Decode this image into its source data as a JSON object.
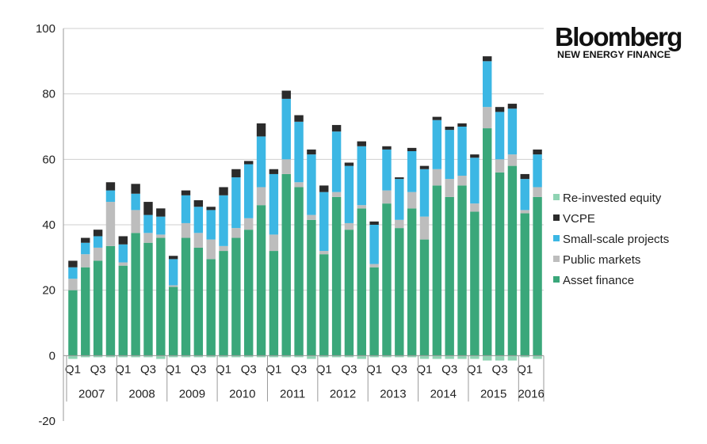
{
  "brand": {
    "name": "Bloomberg",
    "subtitle": "NEW ENERGY FINANCE"
  },
  "chart_data": {
    "type": "bar",
    "stacked": true,
    "title": "",
    "xlabel": "",
    "ylabel": "",
    "ylim": [
      -20,
      100
    ],
    "yticks": [
      -20,
      0,
      20,
      40,
      60,
      80,
      100
    ],
    "grid": true,
    "legend_position": "right",
    "categories": [
      "2007 Q1",
      "2007 Q2",
      "2007 Q3",
      "2007 Q4",
      "2008 Q1",
      "2008 Q2",
      "2008 Q3",
      "2008 Q4",
      "2009 Q1",
      "2009 Q2",
      "2009 Q3",
      "2009 Q4",
      "2010 Q1",
      "2010 Q2",
      "2010 Q3",
      "2010 Q4",
      "2011 Q1",
      "2011 Q2",
      "2011 Q3",
      "2011 Q4",
      "2012 Q1",
      "2012 Q2",
      "2012 Q3",
      "2012 Q4",
      "2013 Q1",
      "2013 Q2",
      "2013 Q3",
      "2013 Q4",
      "2014 Q1",
      "2014 Q2",
      "2014 Q3",
      "2014 Q4",
      "2015 Q1",
      "2015 Q2",
      "2015 Q3",
      "2015 Q4",
      "2016 Q1",
      "2016 Q2"
    ],
    "quarter_labels": [
      "Q1",
      "",
      "Q3",
      "",
      "Q1",
      "",
      "Q3",
      "",
      "Q1",
      "",
      "Q3",
      "",
      "Q1",
      "",
      "Q3",
      "",
      "Q1",
      "",
      "Q3",
      "",
      "Q1",
      "",
      "Q3",
      "",
      "Q1",
      "",
      "Q3",
      "",
      "Q1",
      "",
      "Q3",
      "",
      "Q1",
      "",
      "Q3",
      "",
      "Q1",
      ""
    ],
    "year_labels": [
      "2007",
      "2008",
      "2009",
      "2010",
      "2011",
      "2012",
      "2013",
      "2014",
      "2015",
      "2016"
    ],
    "series": [
      {
        "name": "Asset finance",
        "color": "#3aa77a",
        "values": [
          20,
          27,
          29,
          33.5,
          27.5,
          37.5,
          34.5,
          36,
          21,
          36,
          33,
          29.5,
          32,
          36,
          38.5,
          46,
          32,
          55.5,
          51.5,
          41.5,
          31,
          48.5,
          38.5,
          45,
          27,
          46.5,
          39,
          45,
          35.5,
          52,
          48.5,
          52,
          44,
          69.5,
          56,
          58,
          43.5,
          48.5
        ]
      },
      {
        "name": "Public markets",
        "color": "#bdbdbd",
        "values": [
          3.5,
          4,
          4,
          13.5,
          1,
          7,
          3,
          1,
          0.5,
          4.5,
          4.5,
          6,
          1.5,
          3,
          3.5,
          5.5,
          5,
          4.5,
          1.5,
          1.5,
          1,
          1.5,
          2,
          1,
          1,
          4,
          2.5,
          5,
          7,
          5,
          5.5,
          3,
          2.5,
          6.5,
          4,
          3.5,
          1,
          3
        ]
      },
      {
        "name": "Small-scale projects",
        "color": "#3cb7e4",
        "values": [
          3.5,
          3.5,
          3.5,
          3.5,
          5.5,
          5,
          5.5,
          5.5,
          8,
          8.5,
          8,
          9,
          15.5,
          15.5,
          16.5,
          15.5,
          18.5,
          18.5,
          18.5,
          18.5,
          18,
          18.5,
          17.5,
          18,
          12,
          12.5,
          12.5,
          12.5,
          14.5,
          15,
          15,
          15,
          14,
          14,
          14.5,
          14,
          9.5,
          10
        ]
      },
      {
        "name": "VCPE",
        "color": "#2b2b2b",
        "values": [
          2,
          1.5,
          2,
          2.5,
          2.5,
          3,
          4,
          2.5,
          1,
          1.5,
          2,
          1,
          2.5,
          2.5,
          1,
          4,
          1.5,
          2.5,
          2,
          1.5,
          2,
          2,
          1,
          1.5,
          1,
          1,
          0.5,
          1,
          1,
          1,
          1,
          1,
          1,
          1.5,
          1.5,
          1.5,
          1.5,
          1.5
        ]
      },
      {
        "name": "Re-invested equity",
        "color": "#8fd3b3",
        "values": [
          -1,
          -0.5,
          -0.5,
          -0.5,
          -0.5,
          -0.5,
          -0.5,
          -1,
          -0.5,
          -0.5,
          -0.5,
          -0.5,
          -0.5,
          -0.5,
          -0.5,
          -0.5,
          -0.5,
          -0.5,
          -0.5,
          -1,
          -0.5,
          -0.5,
          -0.5,
          -1,
          -0.5,
          -0.5,
          -0.5,
          -0.5,
          -1,
          -1,
          -1,
          -1,
          -1,
          -1.5,
          -1.5,
          -1.5,
          -0.5,
          -1
        ]
      }
    ],
    "legend_order": [
      "Re-invested equity",
      "VCPE",
      "Small-scale projects",
      "Public markets",
      "Asset finance"
    ]
  }
}
